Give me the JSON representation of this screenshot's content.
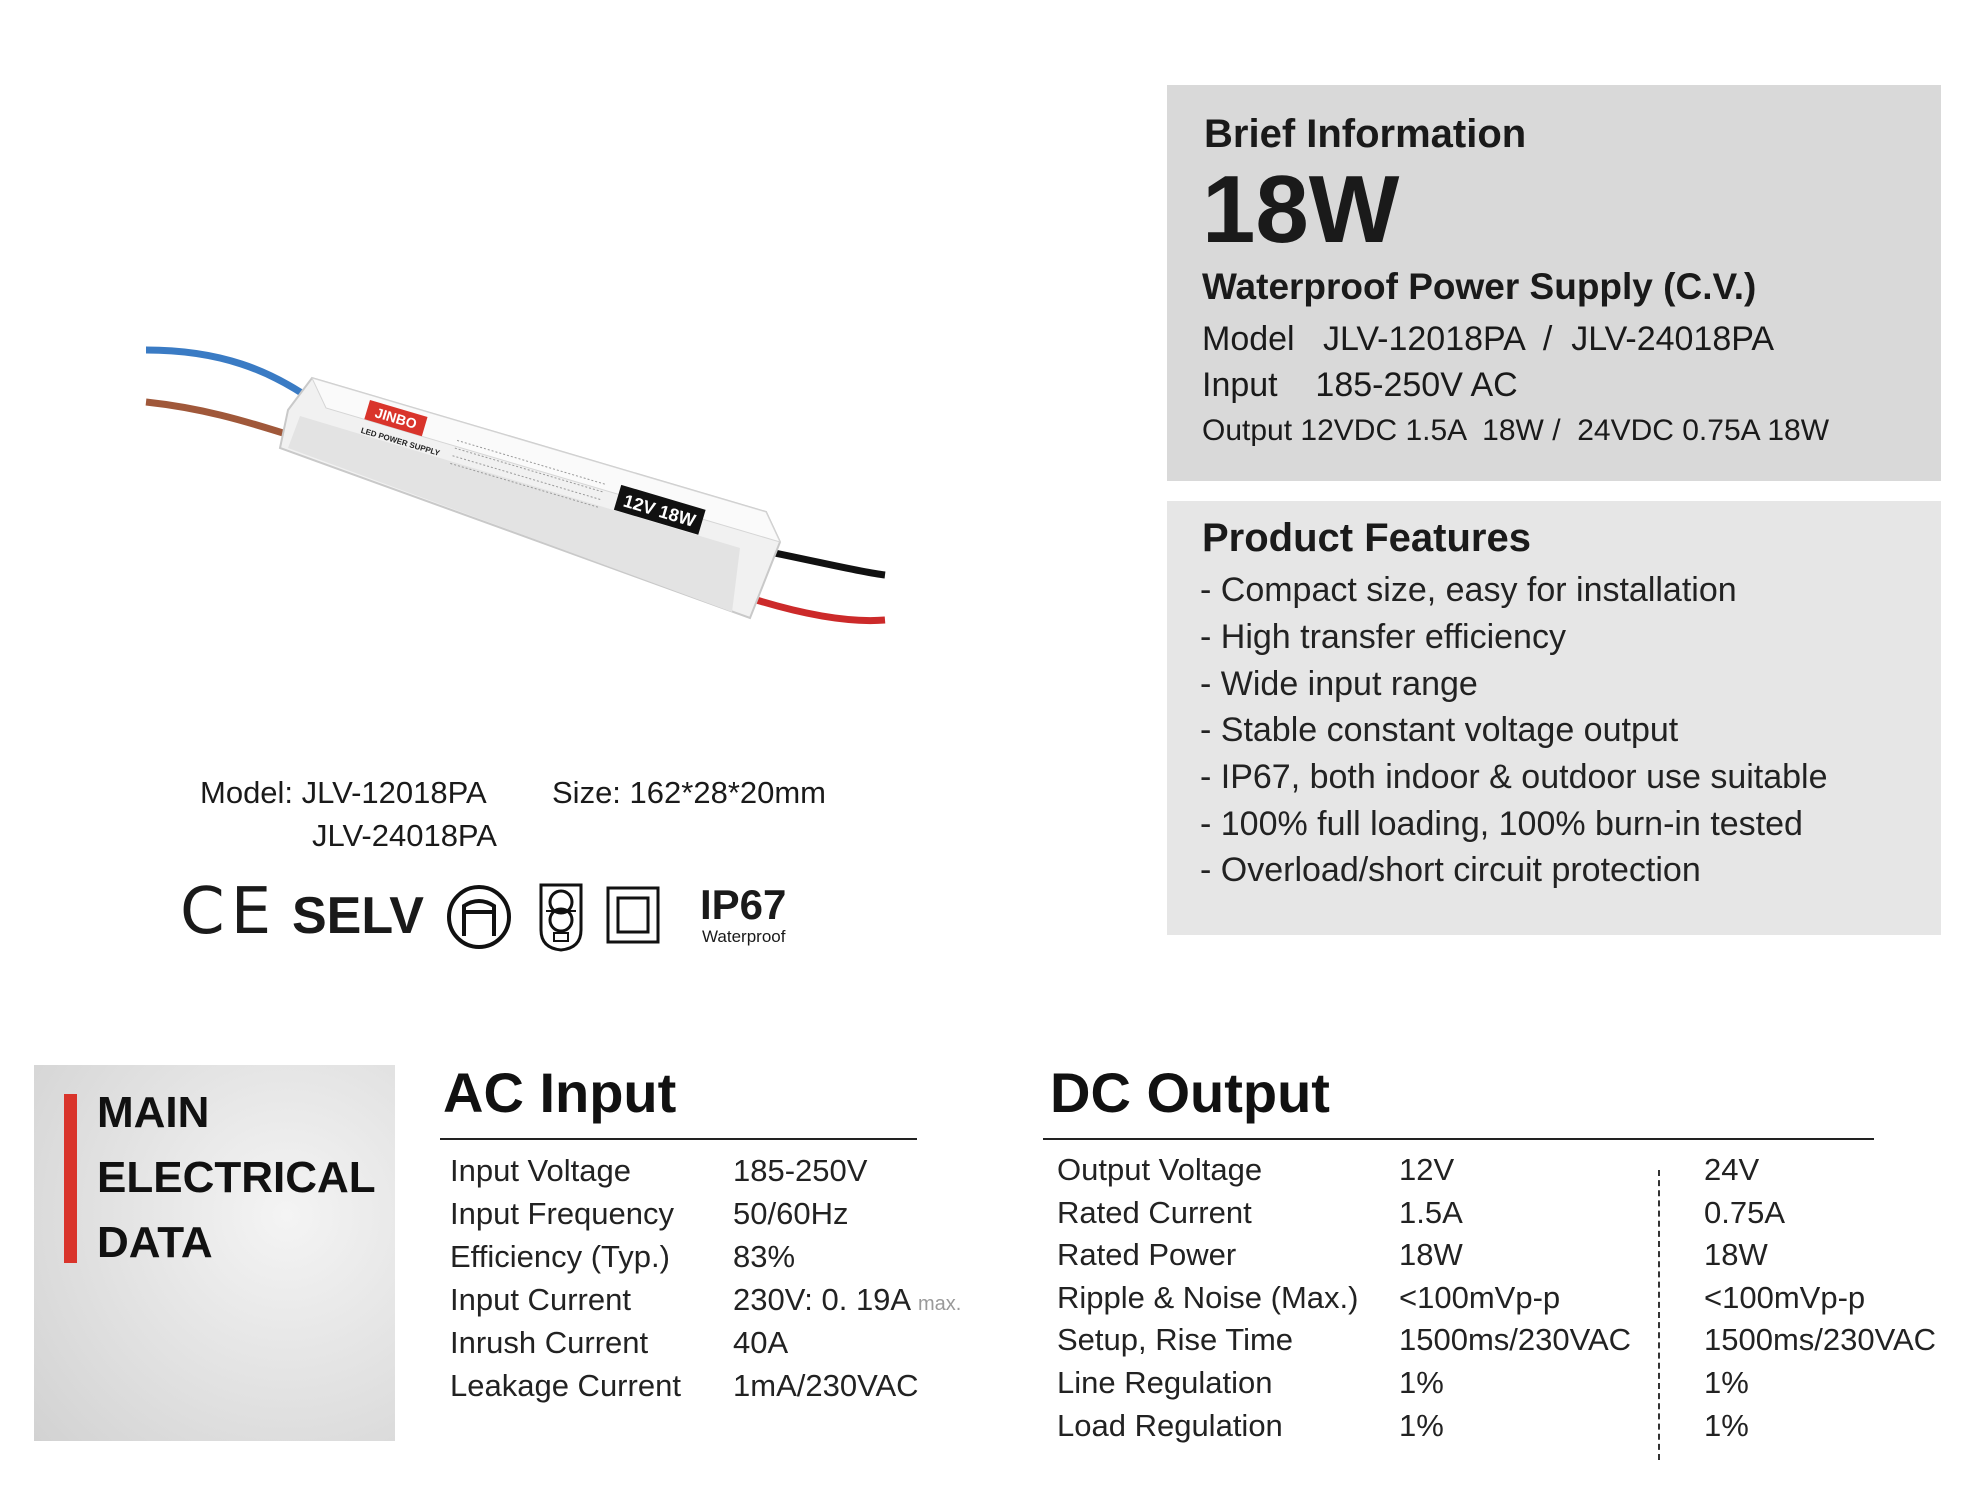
{
  "brief": {
    "title": "Brief Information",
    "power": "18W",
    "product": "Waterproof Power Supply (C.V.)",
    "model_label": "Model",
    "model_value": "JLV-12018PA  /  JLV-24018PA",
    "input_label": "Input",
    "input_value": "185-250V AC",
    "output_label": "Output",
    "output_value": "12VDC 1.5A  18W /  24VDC 0.75A 18W"
  },
  "features": {
    "title": "Product Features",
    "items": [
      "- Compact size, easy for installation",
      "- High transfer efficiency",
      "- Wide input range",
      "- Stable constant voltage output",
      "- IP67, both indoor & outdoor use suitable",
      "- 100% full loading, 100% burn-in tested",
      "- Overload/short circuit protection"
    ]
  },
  "product_image": {
    "brand": "JINBO",
    "subtitle": "LED POWER SUPPLY",
    "rating": "12V 18W"
  },
  "caption": {
    "model_label": "Model:",
    "model_1": "JLV-12018PA",
    "model_2": "JLV-24018PA",
    "size_label": "Size:",
    "size_value": "162*28*20mm"
  },
  "certs": {
    "ce": "CE",
    "selv": "SELV",
    "ip": "IP67",
    "ip_sub": "Waterproof",
    "icons": [
      "ce-mark",
      "selv-mark",
      "furniture-mount-icon",
      "safety-transformer-icon",
      "double-insulation-icon",
      "ip67-mark"
    ]
  },
  "main_label": [
    "MAIN",
    "ELECTRICAL",
    "DATA"
  ],
  "accent_color": "#d9342b",
  "ac_input": {
    "title": "AC Input",
    "rows": [
      {
        "label": "Input Voltage",
        "value": "185-250V"
      },
      {
        "label": "Input Frequency",
        "value": "50/60Hz"
      },
      {
        "label": "Efficiency (Typ.)",
        "value": "83%"
      },
      {
        "label": "Input Current",
        "value": "230V: 0. 19A",
        "note": "max."
      },
      {
        "label": "Inrush Current",
        "value": "40A"
      },
      {
        "label": "Leakage Current",
        "value": "1mA/230VAC"
      }
    ]
  },
  "dc_output": {
    "title": "DC Output",
    "rows": [
      {
        "label": "Output Voltage",
        "v12": "12V",
        "v24": "24V"
      },
      {
        "label": "Rated Current",
        "v12": "1.5A",
        "v24": "0.75A"
      },
      {
        "label": "Rated Power",
        "v12": "18W",
        "v24": "18W"
      },
      {
        "label": "Ripple & Noise (Max.)",
        "v12": "<100mVp-p",
        "v24": "<100mVp-p"
      },
      {
        "label": "Setup, Rise Time",
        "v12": "1500ms/230VAC",
        "v24": "1500ms/230VAC"
      },
      {
        "label": "Line Regulation",
        "v12": "1%",
        "v24": "1%"
      },
      {
        "label": "Load Regulation",
        "v12": "1%",
        "v24": "1%"
      }
    ]
  }
}
